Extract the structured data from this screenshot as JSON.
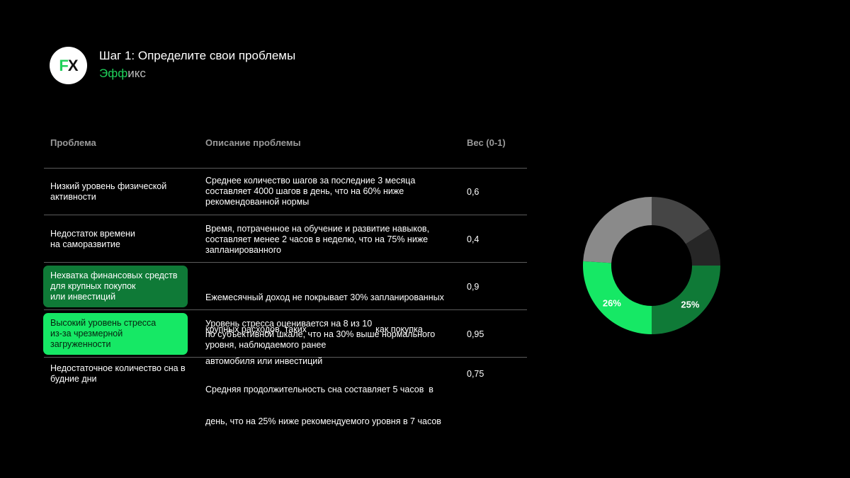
{
  "header": {
    "logo_f": "F",
    "logo_x": "X",
    "title": "Шаг 1: Определите свои проблемы",
    "subtitle_accent": "Эфф",
    "subtitle_rest": "икс"
  },
  "table": {
    "columns": [
      "Проблема",
      "Описание проблемы",
      "Вес (0-1)"
    ],
    "rows": [
      {
        "problem": [
          "Низкий уровень физической",
          "активности"
        ],
        "description": [
          "Среднее количество шагов за последние 3 месяца",
          "составляет 4000 шагов в день, что на 60% ниже",
          "рекомендованной нормы"
        ],
        "weight": "0,6"
      },
      {
        "problem": [
          "Недостаток времени",
          "на саморазвитие"
        ],
        "description": [
          "Время, потраченное на обучение и развитие навыков,",
          "составляет менее 2 часов в неделю, что на 75% ниже",
          "запланированного"
        ],
        "weight": "0,4"
      },
      {
        "problem": [
          "Нехватка финансовых средств",
          "для крупных покупок",
          "или инвестиций"
        ],
        "description": [
          "Ежемесячный доход не покрывает 30% запланированных",
          "крупных расходов, таких                            как покупка",
          "автомобиля или инвестиций"
        ],
        "weight": "0,9"
      },
      {
        "problem": [
          "Высокий уровень стресса",
          "из-за чрезмерной",
          "загруженности"
        ],
        "description": [
          "Уровень стресса оценивается на 8 из 10",
          "по субъективной шкале, что на 30% выше нормального",
          "уровня, наблюдаемого ранее"
        ],
        "weight": "0,95"
      },
      {
        "problem": [
          "Недостаточное количество сна в",
          "будние дни"
        ],
        "description": [
          "Средняя продолжительность сна составляет 5 часов  в",
          "день, что на 25% ниже рекомендуемого уровня в 7 часов"
        ],
        "weight": "0,75"
      }
    ]
  },
  "chart_data": {
    "type": "pie",
    "variant": "donut",
    "slices": [
      {
        "value": 16,
        "label": "",
        "color": "#454545"
      },
      {
        "value": 9,
        "label": "",
        "color": "#262626"
      },
      {
        "value": 25,
        "label": "25%",
        "color": "#0f7a37"
      },
      {
        "value": 26,
        "label": "26%",
        "color": "#16e865"
      },
      {
        "value": 24,
        "label": "",
        "color": "#8a8a8a"
      }
    ]
  }
}
